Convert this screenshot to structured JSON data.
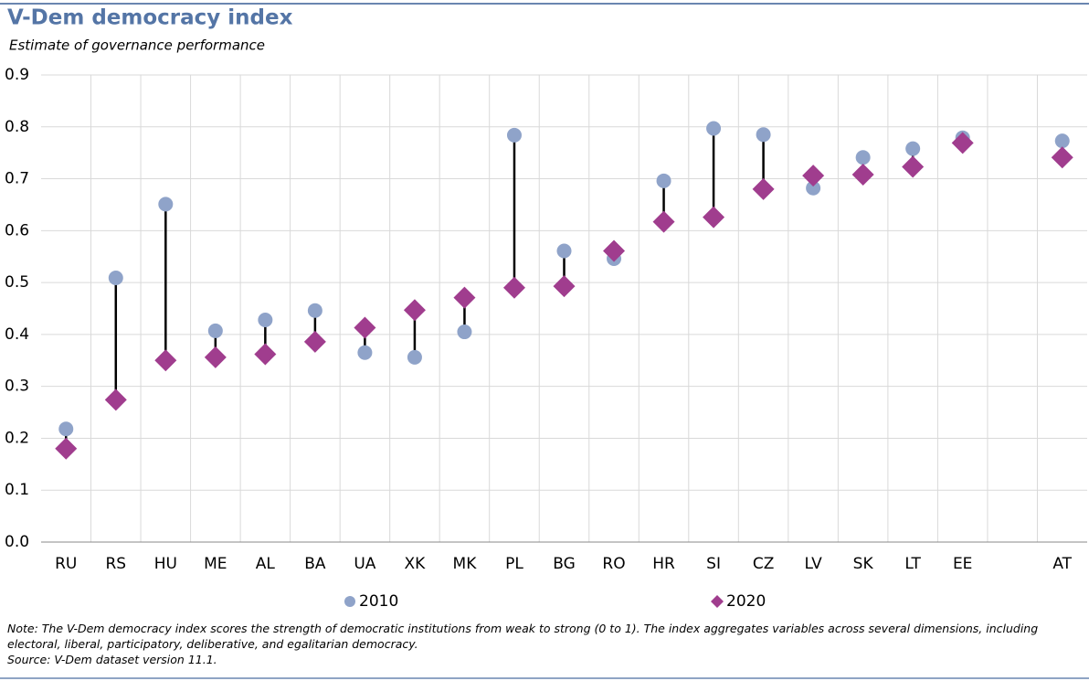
{
  "chart_data": {
    "type": "dumbbell",
    "title": "V-Dem democracy index",
    "subtitle": "Estimate of governance performance",
    "categories": [
      "RU",
      "RS",
      "HU",
      "ME",
      "AL",
      "BA",
      "UA",
      "XK",
      "MK",
      "PL",
      "BG",
      "RO",
      "HR",
      "SI",
      "CZ",
      "LV",
      "SK",
      "LT",
      "EE",
      null,
      "AT"
    ],
    "series": [
      {
        "name": "2010",
        "color": "#8fa3c9",
        "marker": "circle",
        "values": [
          0.218,
          0.509,
          0.651,
          0.407,
          0.428,
          0.446,
          0.365,
          0.356,
          0.405,
          0.784,
          0.561,
          0.546,
          0.696,
          0.797,
          0.785,
          0.682,
          0.741,
          0.758,
          0.779,
          null,
          0.773
        ]
      },
      {
        "name": "2020",
        "color": "#a03d8e",
        "marker": "diamond",
        "values": [
          0.18,
          0.274,
          0.35,
          0.356,
          0.362,
          0.386,
          0.413,
          0.447,
          0.471,
          0.49,
          0.493,
          0.561,
          0.617,
          0.626,
          0.68,
          0.706,
          0.708,
          0.723,
          0.769,
          null,
          0.741
        ]
      }
    ],
    "ylim": [
      0,
      0.9
    ],
    "yticks": [
      {
        "value": 0,
        "label": "0.0"
      },
      0.1,
      0.2,
      0.3,
      0.4,
      0.5,
      0.6,
      0.7,
      0.8,
      0.9
    ],
    "grid": true,
    "legend": "bottom",
    "note": "Note: The V-Dem democracy index scores the strength of democratic institutions from weak to strong (0 to 1). The index aggregates variables across several dimensions, including electoral, liberal, participatory, deliberative, and egalitarian democracy.",
    "source": "Source: V-Dem dataset version 11.1."
  }
}
